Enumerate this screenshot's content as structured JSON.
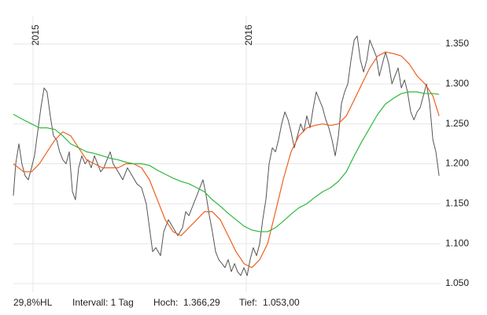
{
  "chart_data": {
    "type": "line",
    "grid": true,
    "xlim": [
      2014.908,
      2016.911
    ],
    "xticks": [
      2015,
      2016
    ],
    "ylim": [
      1.0392,
      1.3756
    ],
    "yticks": [
      {
        "value": 1.05,
        "label": "1.050"
      },
      {
        "value": 1.1,
        "label": "1.100"
      },
      {
        "value": 1.15,
        "label": "1.150"
      },
      {
        "value": 1.2,
        "label": "1.200"
      },
      {
        "value": 1.25,
        "label": "1.250"
      },
      {
        "value": 1.3,
        "label": "1.300"
      },
      {
        "value": 1.35,
        "label": "1.350"
      }
    ],
    "series": [
      {
        "color": "#555555",
        "width": 1,
        "x": [
          2014.908,
          2014.919,
          2014.934,
          2014.948,
          2014.963,
          2014.978,
          2014.993,
          2015.007,
          2015.022,
          2015.037,
          2015.052,
          2015.066,
          2015.081,
          2015.096,
          2015.111,
          2015.125,
          2015.14,
          2015.155,
          2015.17,
          2015.185,
          2015.199,
          2015.214,
          2015.229,
          2015.244,
          2015.258,
          2015.273,
          2015.288,
          2015.303,
          2015.317,
          2015.332,
          2015.362,
          2015.376,
          2015.399,
          2015.421,
          2015.443,
          2015.465,
          2015.487,
          2015.509,
          2015.531,
          2015.546,
          2015.561,
          2015.576,
          2015.598,
          2015.613,
          2015.635,
          2015.657,
          2015.679,
          2015.701,
          2015.716,
          2015.731,
          2015.753,
          2015.768,
          2015.782,
          2015.797,
          2015.812,
          2015.827,
          2015.841,
          2015.856,
          2015.871,
          2015.886,
          2015.9,
          2015.915,
          2015.93,
          2015.945,
          2015.959,
          2015.974,
          2015.989,
          2016.004,
          2016.018,
          2016.033,
          2016.048,
          2016.063,
          2016.077,
          2016.092,
          2016.107,
          2016.122,
          2016.137,
          2016.151,
          2016.166,
          2016.181,
          2016.196,
          2016.21,
          2016.225,
          2016.24,
          2016.255,
          2016.269,
          2016.284,
          2016.299,
          2016.314,
          2016.328,
          2016.343,
          2016.358,
          2016.373,
          2016.387,
          2016.402,
          2016.417,
          2016.432,
          2016.446,
          2016.461,
          2016.476,
          2016.491,
          2016.506,
          2016.52,
          2016.535,
          2016.55,
          2016.565,
          2016.579,
          2016.594,
          2016.609,
          2016.624,
          2016.638,
          2016.653,
          2016.668,
          2016.683,
          2016.697,
          2016.712,
          2016.727,
          2016.742,
          2016.756,
          2016.771,
          2016.786,
          2016.801,
          2016.815,
          2016.83,
          2016.845,
          2016.86,
          2016.875,
          2016.889,
          2016.904
        ],
        "values": [
          1.16,
          1.2,
          1.225,
          1.2,
          1.185,
          1.18,
          1.195,
          1.21,
          1.24,
          1.27,
          1.295,
          1.29,
          1.26,
          1.235,
          1.23,
          1.215,
          1.205,
          1.2,
          1.215,
          1.165,
          1.155,
          1.195,
          1.21,
          1.2,
          1.205,
          1.195,
          1.21,
          1.2,
          1.19,
          1.195,
          1.215,
          1.2,
          1.19,
          1.18,
          1.195,
          1.185,
          1.175,
          1.17,
          1.15,
          1.12,
          1.09,
          1.095,
          1.085,
          1.115,
          1.13,
          1.12,
          1.11,
          1.12,
          1.14,
          1.135,
          1.15,
          1.16,
          1.17,
          1.18,
          1.16,
          1.135,
          1.115,
          1.09,
          1.08,
          1.075,
          1.07,
          1.08,
          1.065,
          1.075,
          1.065,
          1.06,
          1.07,
          1.06,
          1.08,
          1.095,
          1.085,
          1.1,
          1.13,
          1.155,
          1.2,
          1.22,
          1.215,
          1.23,
          1.25,
          1.265,
          1.255,
          1.24,
          1.22,
          1.235,
          1.25,
          1.24,
          1.26,
          1.245,
          1.27,
          1.29,
          1.28,
          1.27,
          1.255,
          1.245,
          1.23,
          1.21,
          1.235,
          1.275,
          1.29,
          1.3,
          1.33,
          1.355,
          1.36,
          1.33,
          1.315,
          1.33,
          1.355,
          1.345,
          1.335,
          1.31,
          1.325,
          1.34,
          1.325,
          1.3,
          1.31,
          1.32,
          1.295,
          1.305,
          1.29,
          1.265,
          1.255,
          1.265,
          1.27,
          1.285,
          1.3,
          1.275,
          1.23,
          1.215,
          1.185
        ]
      },
      {
        "color": "#f0601e",
        "width": 1.2,
        "x": [
          2014.908,
          2014.956,
          2014.993,
          2015.03,
          2015.066,
          2015.103,
          2015.14,
          2015.177,
          2015.214,
          2015.251,
          2015.288,
          2015.325,
          2015.362,
          2015.399,
          2015.435,
          2015.472,
          2015.509,
          2015.546,
          2015.583,
          2015.62,
          2015.657,
          2015.694,
          2015.731,
          2015.768,
          2015.804,
          2015.841,
          2015.878,
          2015.915,
          2015.952,
          2015.989,
          2016.026,
          2016.063,
          2016.1,
          2016.137,
          2016.173,
          2016.21,
          2016.247,
          2016.284,
          2016.321,
          2016.358,
          2016.395,
          2016.432,
          2016.469,
          2016.506,
          2016.542,
          2016.579,
          2016.616,
          2016.653,
          2016.69,
          2016.727,
          2016.764,
          2016.801,
          2016.838,
          2016.875,
          2016.904
        ],
        "values": [
          1.2,
          1.19,
          1.19,
          1.2,
          1.215,
          1.23,
          1.24,
          1.235,
          1.22,
          1.205,
          1.2,
          1.195,
          1.195,
          1.195,
          1.2,
          1.2,
          1.195,
          1.18,
          1.155,
          1.13,
          1.115,
          1.11,
          1.12,
          1.13,
          1.14,
          1.14,
          1.13,
          1.11,
          1.09,
          1.075,
          1.07,
          1.08,
          1.1,
          1.14,
          1.18,
          1.215,
          1.235,
          1.245,
          1.248,
          1.25,
          1.248,
          1.25,
          1.26,
          1.28,
          1.3,
          1.32,
          1.335,
          1.34,
          1.338,
          1.335,
          1.325,
          1.31,
          1.3,
          1.285,
          1.26
        ]
      },
      {
        "color": "#2db83d",
        "width": 1.2,
        "x": [
          2014.908,
          2014.956,
          2014.993,
          2015.03,
          2015.066,
          2015.103,
          2015.14,
          2015.177,
          2015.214,
          2015.251,
          2015.288,
          2015.325,
          2015.362,
          2015.399,
          2015.435,
          2015.472,
          2015.509,
          2015.546,
          2015.583,
          2015.62,
          2015.657,
          2015.694,
          2015.731,
          2015.768,
          2015.804,
          2015.841,
          2015.878,
          2015.915,
          2015.952,
          2015.989,
          2016.026,
          2016.063,
          2016.1,
          2016.137,
          2016.173,
          2016.21,
          2016.247,
          2016.284,
          2016.321,
          2016.358,
          2016.395,
          2016.432,
          2016.469,
          2016.506,
          2016.542,
          2016.579,
          2016.616,
          2016.653,
          2016.69,
          2016.727,
          2016.764,
          2016.801,
          2016.838,
          2016.875,
          2016.904
        ],
        "values": [
          1.262,
          1.255,
          1.25,
          1.245,
          1.245,
          1.243,
          1.235,
          1.225,
          1.22,
          1.215,
          1.213,
          1.21,
          1.207,
          1.205,
          1.202,
          1.2,
          1.2,
          1.198,
          1.192,
          1.187,
          1.182,
          1.178,
          1.175,
          1.17,
          1.165,
          1.155,
          1.147,
          1.138,
          1.13,
          1.122,
          1.117,
          1.115,
          1.115,
          1.12,
          1.128,
          1.137,
          1.145,
          1.15,
          1.158,
          1.165,
          1.17,
          1.178,
          1.19,
          1.21,
          1.228,
          1.245,
          1.262,
          1.275,
          1.282,
          1.288,
          1.29,
          1.29,
          1.288,
          1.288,
          1.287
        ]
      }
    ],
    "footer": {
      "range": "29,8%HL",
      "interval": "Intervall: 1 Tag",
      "high_label": "Hoch:",
      "high": "1.366,29",
      "low_label": "Tief:",
      "low": "1.053,00"
    }
  }
}
